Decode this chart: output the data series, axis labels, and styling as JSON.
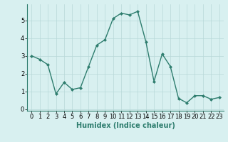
{
  "x": [
    0,
    1,
    2,
    3,
    4,
    5,
    6,
    7,
    8,
    9,
    10,
    11,
    12,
    13,
    14,
    15,
    16,
    17,
    18,
    19,
    20,
    21,
    22,
    23
  ],
  "y": [
    3.0,
    2.8,
    2.5,
    0.85,
    1.5,
    1.1,
    1.2,
    2.4,
    3.6,
    3.9,
    5.1,
    5.4,
    5.3,
    5.5,
    3.8,
    1.55,
    3.1,
    2.4,
    0.6,
    0.35,
    0.75,
    0.75,
    0.55,
    0.65
  ],
  "line_color": "#2e7d6e",
  "marker": "D",
  "marker_size": 2,
  "linewidth": 1.0,
  "xlabel": "Humidex (Indice chaleur)",
  "xlim": [
    -0.5,
    23.5
  ],
  "ylim": [
    -0.1,
    5.9
  ],
  "yticks": [
    0,
    1,
    2,
    3,
    4,
    5
  ],
  "xticks": [
    0,
    1,
    2,
    3,
    4,
    5,
    6,
    7,
    8,
    9,
    10,
    11,
    12,
    13,
    14,
    15,
    16,
    17,
    18,
    19,
    20,
    21,
    22,
    23
  ],
  "bg_color": "#d8f0f0",
  "grid_color": "#b8d8d8",
  "xlabel_fontsize": 7,
  "tick_fontsize": 6
}
